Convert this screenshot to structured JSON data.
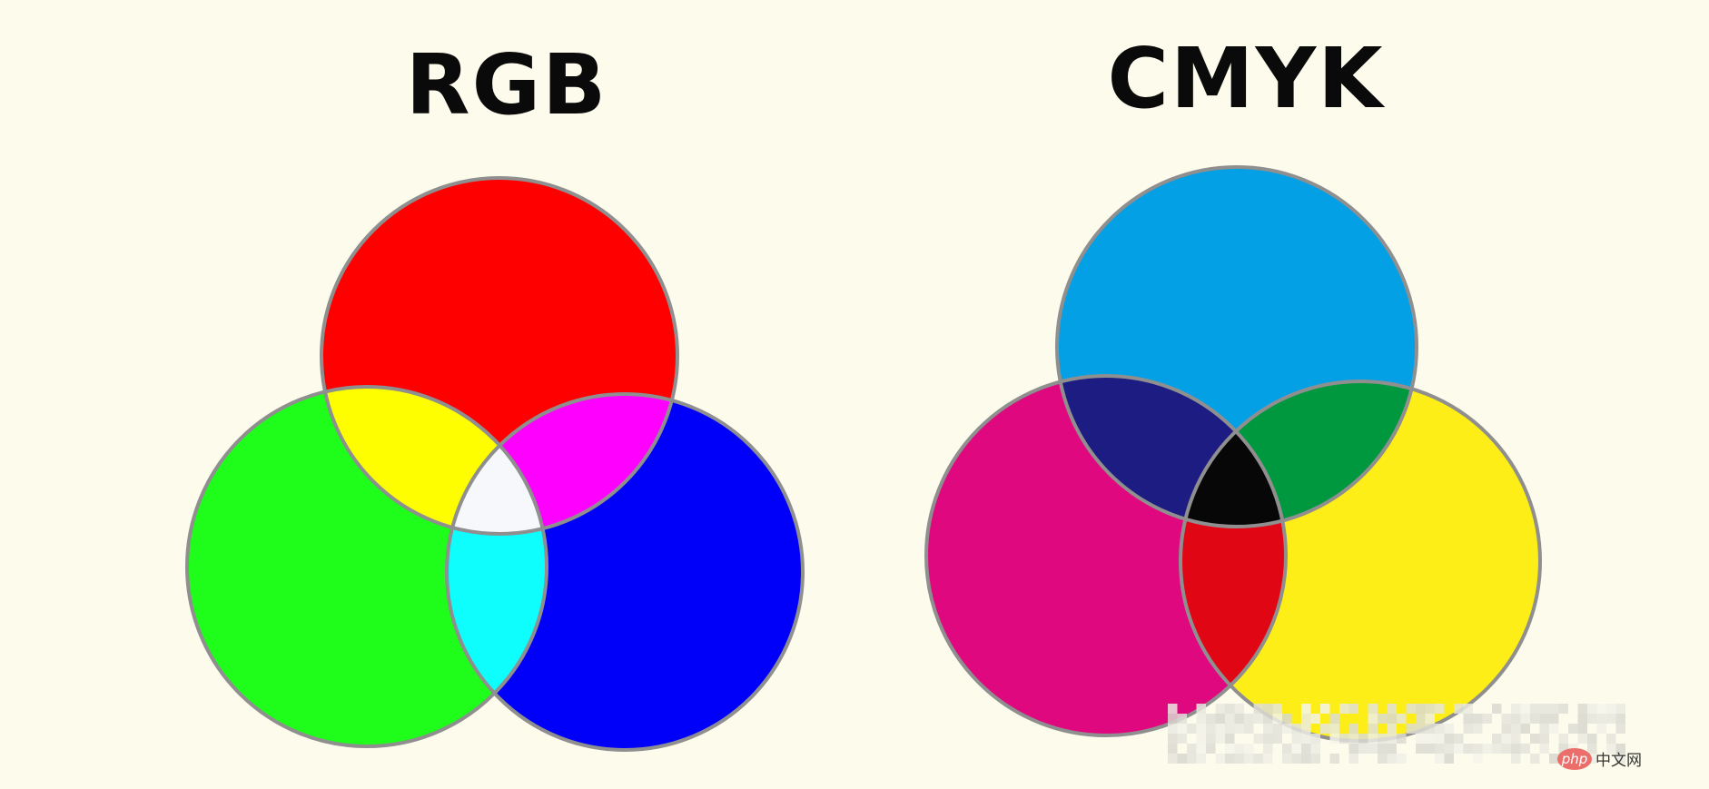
{
  "rgb": {
    "title": "RGB",
    "colors": {
      "red": "#fe0000",
      "green": "#1efe1a",
      "blue": "#0000fa",
      "yellow": "#fefe00",
      "magenta": "#fe00fe",
      "cyan": "#0efefe",
      "white": "#f6f8fc"
    }
  },
  "cmyk": {
    "title": "CMYK",
    "colors": {
      "cyan": "#03a0e6",
      "magenta": "#e0087f",
      "yellow": "#fdee18",
      "blue": "#1c1c82",
      "green": "#00983e",
      "red": "#e00613",
      "black": "#070707"
    }
  },
  "outline_color": "#8f8f8f",
  "background": "#fdfbeb",
  "watermark": {
    "logo": "php",
    "text": "中文网"
  }
}
